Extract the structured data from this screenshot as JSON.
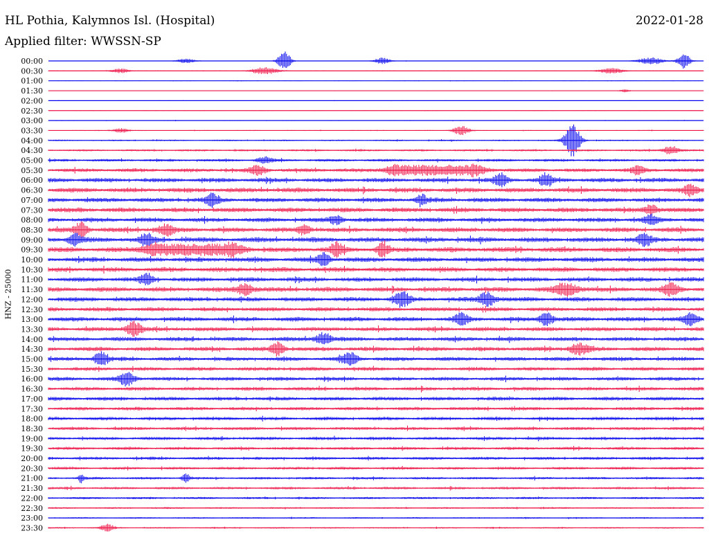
{
  "header": {
    "station": "HL Pothia, Kalymnos Isl. (Hospital)",
    "date": "2022-01-28",
    "filter": "Applied filter: WWSSN-SP"
  },
  "chart_data": {
    "type": "line",
    "title": "HL Pothia, Kalymnos Isl. (Hospital)",
    "ylabel": "HNZ - 25000",
    "trace_colors": [
      "#0000ee",
      "#ee1144"
    ],
    "rows": [
      "00:00",
      "00:30",
      "01:00",
      "01:30",
      "02:00",
      "02:30",
      "03:00",
      "03:30",
      "04:00",
      "04:30",
      "05:00",
      "05:30",
      "06:00",
      "06:30",
      "07:00",
      "07:30",
      "08:00",
      "08:30",
      "09:00",
      "09:30",
      "10:00",
      "10:30",
      "11:00",
      "11:30",
      "12:00",
      "12:30",
      "13:00",
      "13:30",
      "14:00",
      "14:30",
      "15:00",
      "15:30",
      "16:00",
      "16:30",
      "17:00",
      "17:30",
      "18:00",
      "18:30",
      "19:00",
      "19:30",
      "20:00",
      "20:30",
      "21:00",
      "21:30",
      "22:00",
      "22:30",
      "23:00",
      "23:30"
    ],
    "noise_level": [
      0.4,
      0.6,
      0.5,
      0.4,
      0.5,
      0.5,
      0.6,
      0.7,
      1.2,
      1.6,
      2.2,
      3.0,
      3.5,
      3.8,
      3.6,
      3.8,
      3.6,
      3.8,
      4.0,
      4.0,
      3.8,
      3.8,
      3.6,
      3.8,
      3.6,
      3.4,
      3.6,
      3.4,
      3.4,
      3.4,
      3.2,
      3.0,
      3.0,
      3.0,
      3.0,
      2.8,
      2.8,
      2.6,
      2.6,
      2.4,
      2.4,
      2.2,
      2.0,
      2.0,
      1.8,
      1.4,
      1.2,
      1.2
    ],
    "events": [
      {
        "row": 0,
        "x": 0.36,
        "amp": 14,
        "width": 0.01
      },
      {
        "row": 0,
        "x": 0.51,
        "amp": 5,
        "width": 0.012
      },
      {
        "row": 0,
        "x": 0.97,
        "amp": 11,
        "width": 0.01
      },
      {
        "row": 0,
        "x": 0.92,
        "amp": 5,
        "width": 0.02
      },
      {
        "row": 0,
        "x": 0.21,
        "amp": 3,
        "width": 0.015
      },
      {
        "row": 1,
        "x": 0.33,
        "amp": 5,
        "width": 0.02
      },
      {
        "row": 1,
        "x": 0.11,
        "amp": 3,
        "width": 0.015
      },
      {
        "row": 1,
        "x": 0.86,
        "amp": 4,
        "width": 0.018
      },
      {
        "row": 3,
        "x": 0.88,
        "amp": 2,
        "width": 0.008
      },
      {
        "row": 7,
        "x": 0.63,
        "amp": 7,
        "width": 0.012
      },
      {
        "row": 7,
        "x": 0.11,
        "amp": 3,
        "width": 0.012
      },
      {
        "row": 8,
        "x": 0.8,
        "amp": 24,
        "width": 0.012
      },
      {
        "row": 9,
        "x": 0.95,
        "amp": 6,
        "width": 0.012
      },
      {
        "row": 10,
        "x": 0.33,
        "amp": 4,
        "width": 0.012
      },
      {
        "row": 11,
        "x": 0.59,
        "amp": 8,
        "width": 0.055,
        "flat": true
      },
      {
        "row": 11,
        "x": 0.32,
        "amp": 6,
        "width": 0.012
      },
      {
        "row": 11,
        "x": 0.9,
        "amp": 6,
        "width": 0.01
      },
      {
        "row": 12,
        "x": 0.69,
        "amp": 9,
        "width": 0.01
      },
      {
        "row": 12,
        "x": 0.76,
        "amp": 9,
        "width": 0.01
      },
      {
        "row": 13,
        "x": 0.98,
        "amp": 7,
        "width": 0.01
      },
      {
        "row": 14,
        "x": 0.25,
        "amp": 9,
        "width": 0.01
      },
      {
        "row": 14,
        "x": 0.57,
        "amp": 7,
        "width": 0.008
      },
      {
        "row": 15,
        "x": 0.92,
        "amp": 7,
        "width": 0.01
      },
      {
        "row": 16,
        "x": 0.44,
        "amp": 6,
        "width": 0.01
      },
      {
        "row": 16,
        "x": 0.92,
        "amp": 6,
        "width": 0.01
      },
      {
        "row": 17,
        "x": 0.05,
        "amp": 10,
        "width": 0.01
      },
      {
        "row": 17,
        "x": 0.18,
        "amp": 7,
        "width": 0.012
      },
      {
        "row": 17,
        "x": 0.39,
        "amp": 6,
        "width": 0.01
      },
      {
        "row": 18,
        "x": 0.04,
        "amp": 8,
        "width": 0.01
      },
      {
        "row": 18,
        "x": 0.15,
        "amp": 8,
        "width": 0.01
      },
      {
        "row": 18,
        "x": 0.91,
        "amp": 9,
        "width": 0.01
      },
      {
        "row": 19,
        "x": 0.22,
        "amp": 9,
        "width": 0.055,
        "flat": true
      },
      {
        "row": 19,
        "x": 0.44,
        "amp": 9,
        "width": 0.01
      },
      {
        "row": 19,
        "x": 0.51,
        "amp": 10,
        "width": 0.008
      },
      {
        "row": 20,
        "x": 0.42,
        "amp": 9,
        "width": 0.01
      },
      {
        "row": 22,
        "x": 0.15,
        "amp": 8,
        "width": 0.01
      },
      {
        "row": 23,
        "x": 0.3,
        "amp": 8,
        "width": 0.012
      },
      {
        "row": 23,
        "x": 0.79,
        "amp": 8,
        "width": 0.02
      },
      {
        "row": 23,
        "x": 0.95,
        "amp": 8,
        "width": 0.012
      },
      {
        "row": 24,
        "x": 0.54,
        "amp": 10,
        "width": 0.012
      },
      {
        "row": 24,
        "x": 0.67,
        "amp": 10,
        "width": 0.012
      },
      {
        "row": 26,
        "x": 0.63,
        "amp": 8,
        "width": 0.01
      },
      {
        "row": 26,
        "x": 0.76,
        "amp": 9,
        "width": 0.01
      },
      {
        "row": 26,
        "x": 0.98,
        "amp": 8,
        "width": 0.01
      },
      {
        "row": 27,
        "x": 0.13,
        "amp": 10,
        "width": 0.012
      },
      {
        "row": 28,
        "x": 0.42,
        "amp": 8,
        "width": 0.012
      },
      {
        "row": 29,
        "x": 0.35,
        "amp": 9,
        "width": 0.01
      },
      {
        "row": 29,
        "x": 0.81,
        "amp": 7,
        "width": 0.015
      },
      {
        "row": 30,
        "x": 0.08,
        "amp": 10,
        "width": 0.01
      },
      {
        "row": 30,
        "x": 0.46,
        "amp": 9,
        "width": 0.012
      },
      {
        "row": 32,
        "x": 0.12,
        "amp": 9,
        "width": 0.012
      },
      {
        "row": 42,
        "x": 0.05,
        "amp": 6,
        "width": 0.004
      },
      {
        "row": 42,
        "x": 0.21,
        "amp": 6,
        "width": 0.006
      },
      {
        "row": 47,
        "x": 0.09,
        "amp": 5,
        "width": 0.01
      }
    ]
  }
}
